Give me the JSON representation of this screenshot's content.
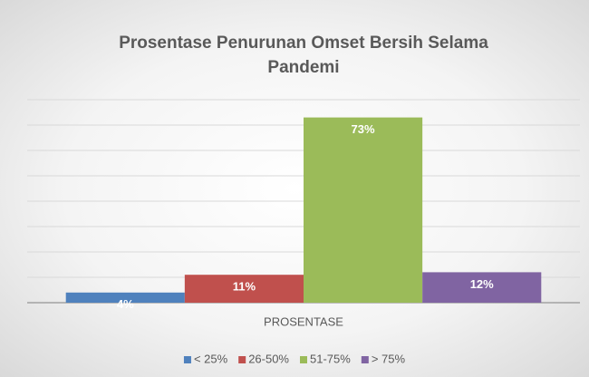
{
  "chart_data": {
    "type": "bar",
    "title": "Prosentase Penurunan Omset Bersih Selama Pandemi",
    "categories": [
      "PROSENTASE"
    ],
    "series": [
      {
        "name": "< 25%",
        "color": "#4f81bd",
        "values": [
          4
        ],
        "value_labels": [
          "4%"
        ]
      },
      {
        "name": "26-50%",
        "color": "#c0504d",
        "values": [
          11
        ],
        "value_labels": [
          "11%"
        ]
      },
      {
        "name": "51-75%",
        "color": "#9bbb59",
        "values": [
          73
        ],
        "value_labels": [
          "73%"
        ]
      },
      {
        "name": "> 75%",
        "color": "#8064a2",
        "values": [
          12
        ],
        "value_labels": [
          "12%"
        ]
      }
    ],
    "ylim": [
      0,
      80
    ],
    "yticks": [
      0,
      10,
      20,
      30,
      40,
      50,
      60,
      70,
      80
    ],
    "grid": true,
    "legend": "bottom"
  }
}
